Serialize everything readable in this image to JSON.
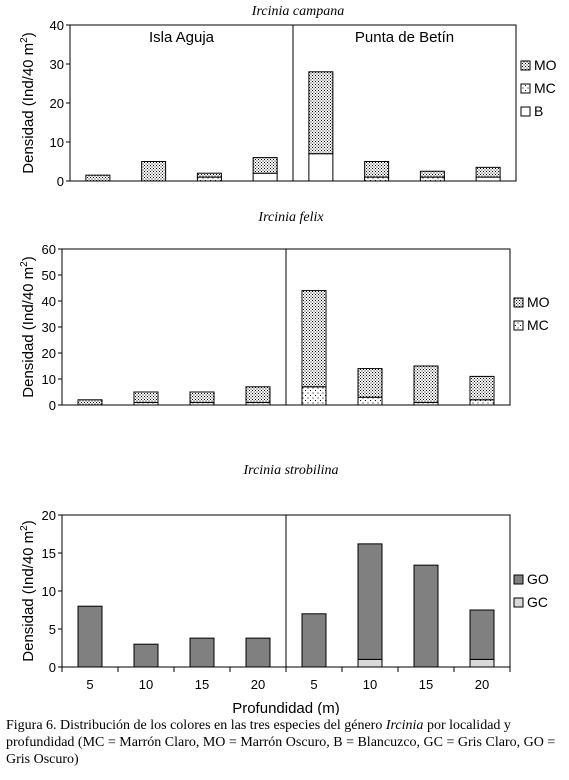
{
  "chart_data": [
    {
      "type": "bar",
      "stacked": true,
      "title_species": "Ircinia campana",
      "groups": [
        "Isla Aguja",
        "Punta de Betín"
      ],
      "categories": [
        "5",
        "10",
        "15",
        "20",
        "5",
        "10",
        "15",
        "20"
      ],
      "series": [
        {
          "name": "B",
          "pattern": "white",
          "values": [
            0,
            0,
            0,
            2,
            7,
            0,
            0,
            1
          ]
        },
        {
          "name": "MC",
          "pattern": "dots-sparse",
          "values": [
            0,
            0,
            1,
            0,
            0,
            1,
            1,
            0
          ]
        },
        {
          "name": "MO",
          "pattern": "dots-dense",
          "values": [
            1.5,
            5,
            1,
            4,
            21,
            4,
            1.5,
            2.5
          ]
        }
      ],
      "ylabel_pre": "Densidad (Ind/40 m",
      "ylabel_sup": "2",
      "ylabel_post": ")",
      "yticks": [
        "0",
        "10",
        "20",
        "30",
        "40"
      ],
      "ylim": [
        0,
        40
      ],
      "legend": [
        "MO",
        "MC",
        "B"
      ]
    },
    {
      "type": "bar",
      "stacked": true,
      "title_species": "Ircinia felix",
      "categories": [
        "5",
        "10",
        "15",
        "20",
        "5",
        "10",
        "15",
        "20"
      ],
      "series": [
        {
          "name": "MC",
          "pattern": "dots-sparse",
          "values": [
            0,
            1,
            1,
            1,
            7,
            3,
            1,
            2
          ]
        },
        {
          "name": "MO",
          "pattern": "dots-dense",
          "values": [
            2,
            4,
            4,
            6,
            37,
            11,
            14,
            9
          ]
        }
      ],
      "ylabel_pre": "Densidad (Ind/40 m",
      "ylabel_sup": "2",
      "ylabel_post": ")",
      "yticks": [
        "0",
        "10",
        "20",
        "30",
        "40",
        "50",
        "60"
      ],
      "ylim": [
        0,
        60
      ],
      "legend": [
        "MO",
        "MC"
      ]
    },
    {
      "type": "bar",
      "stacked": true,
      "title_species": "Ircinia strobilina",
      "categories": [
        "5",
        "10",
        "15",
        "20",
        "5",
        "10",
        "15",
        "20"
      ],
      "series": [
        {
          "name": "GC",
          "pattern": "light-gray",
          "values": [
            0,
            0,
            0,
            0,
            0,
            1,
            0,
            1
          ]
        },
        {
          "name": "GO",
          "pattern": "dark-gray",
          "values": [
            8,
            3,
            3.8,
            3.8,
            7,
            15.2,
            13.4,
            6.5
          ]
        }
      ],
      "ylabel_pre": "Densidad (Ind/40 m",
      "ylabel_sup": "2",
      "ylabel_post": ")",
      "xlabel": "Profundidad (m)",
      "yticks": [
        "0",
        "5",
        "10",
        "15",
        "20"
      ],
      "ylim": [
        0,
        20
      ],
      "legend": [
        "GO",
        "GC"
      ]
    }
  ],
  "caption": {
    "pre": "Figura 6. Distribución de los colores en las tres especies del género ",
    "genus": "Ircinia",
    "post": " por localidad y profundidad (MC = Marrón Claro, MO = Marrón Oscuro, B = Blancuzco, GC = Gris Claro, GO = Gris Oscuro)"
  },
  "colors": {
    "go_fill": "#808080",
    "gc_fill": "#d9d9d9",
    "axis": "#000000"
  }
}
